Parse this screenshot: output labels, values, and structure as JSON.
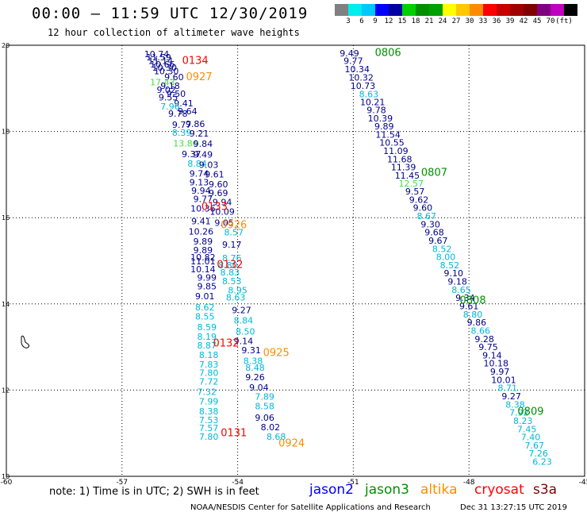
{
  "header": {
    "title": "00:00 — 11:59 UTC 12/30/2019",
    "subtitle": "12 hour collection of altimeter wave heights"
  },
  "colorbar": {
    "colors": [
      "#808080",
      "#00eeee",
      "#00c8ff",
      "#0000ff",
      "#0000a0",
      "#00d000",
      "#009000",
      "#00a000",
      "#ffff00",
      "#ffc800",
      "#ff8c00",
      "#ff0000",
      "#c80000",
      "#a00000",
      "#800000",
      "#800080",
      "#c000c0",
      "#000000"
    ],
    "labels": [
      "3",
      "6",
      "9",
      "12",
      "15",
      "18",
      "21",
      "24",
      "27",
      "30",
      "33",
      "36",
      "39",
      "42",
      "45",
      "70",
      "(ft)"
    ]
  },
  "footer": {
    "note": "note: 1) Time is in UTC; 2) SWH is in feet",
    "legend": [
      {
        "name": "jason2",
        "color": "#0000ff"
      },
      {
        "name": "jason3",
        "color": "#009000"
      },
      {
        "name": "altika",
        "color": "#ff8c00"
      },
      {
        "name": "cryosat",
        "color": "#ff0000"
      },
      {
        "name": "s3a",
        "color": "#800000"
      }
    ],
    "credit": "NOAA/NESDIS Center for Satellite Applications and Research",
    "timestamp": "Dec 31 13:27:15 UTC 2019"
  },
  "chart_data": {
    "type": "scatter",
    "xlim": [
      -60,
      -45
    ],
    "ylim": [
      10,
      20
    ],
    "x_ticks": [
      "-60",
      "-57",
      "-54",
      "-51",
      "-48",
      "-45"
    ],
    "y_ticks": [
      "10",
      "12",
      "14",
      "16",
      "18",
      "20"
    ],
    "grid": true,
    "value_colors": {
      "a": "#00008b",
      "b": "#00b8d8",
      "c": "#44dd44"
    },
    "series": [
      {
        "points": [
          [
            -56.1,
            19.8,
            "10.74",
            "a"
          ],
          [
            -56.05,
            19.72,
            "11.59",
            "a"
          ],
          [
            -56.0,
            19.64,
            "11.14",
            "a"
          ],
          [
            -55.95,
            19.56,
            "10.66",
            "a"
          ],
          [
            -55.9,
            19.48,
            "10.30",
            "a"
          ],
          [
            -55.85,
            19.4,
            "10.30",
            "a"
          ],
          [
            -55.65,
            19.26,
            "9.60",
            "a"
          ],
          [
            -55.95,
            19.14,
            "17.43",
            "c"
          ],
          [
            -55.75,
            19.06,
            "9.18",
            "a"
          ],
          [
            -55.85,
            18.97,
            "9.02",
            "a"
          ],
          [
            -55.6,
            18.88,
            "9.50",
            "a"
          ],
          [
            -55.8,
            18.79,
            "9.55",
            "a"
          ],
          [
            -55.4,
            18.66,
            "9.41",
            "a"
          ],
          [
            -55.75,
            18.58,
            "7.96",
            "b"
          ],
          [
            -55.3,
            18.47,
            "9.64",
            "a"
          ],
          [
            -55.55,
            18.42,
            "9.78",
            "a"
          ],
          [
            -55.1,
            18.18,
            "9.86",
            "a"
          ],
          [
            -55.45,
            18.16,
            "9.77",
            "a"
          ],
          [
            -55.45,
            17.97,
            "8.39",
            "b"
          ],
          [
            -55.0,
            17.96,
            "9.21",
            "a"
          ],
          [
            -55.35,
            17.73,
            "13.86",
            "c"
          ],
          [
            -54.9,
            17.72,
            "9.84",
            "a"
          ],
          [
            -55.2,
            17.48,
            "9.37",
            "a"
          ],
          [
            -54.9,
            17.47,
            "9.49",
            "a"
          ],
          [
            -55.05,
            17.26,
            "8.84",
            "b"
          ],
          [
            -54.75,
            17.23,
            "9.03",
            "a"
          ],
          [
            -55.0,
            17.03,
            "9.74",
            "a"
          ],
          [
            -54.6,
            17.01,
            "9.61",
            "a"
          ],
          [
            -55.0,
            16.82,
            "9.13",
            "a"
          ],
          [
            -54.5,
            16.78,
            "9.60",
            "a"
          ],
          [
            -54.95,
            16.63,
            "9.94",
            "a"
          ],
          [
            -54.5,
            16.57,
            "9.69",
            "a"
          ],
          [
            -54.9,
            16.44,
            "9.77",
            "a"
          ],
          [
            -54.4,
            16.36,
            "9.94",
            "a"
          ],
          [
            -54.9,
            16.22,
            "10.36",
            "a"
          ],
          [
            -54.4,
            16.14,
            "10.09",
            "a"
          ],
          [
            -54.95,
            15.92,
            "9.41",
            "a"
          ],
          [
            -54.35,
            15.88,
            "9.05",
            "a"
          ],
          [
            -54.95,
            15.68,
            "10.26",
            "a"
          ],
          [
            -54.1,
            15.66,
            "8.57",
            "b"
          ],
          [
            -54.9,
            15.45,
            "9.89",
            "a"
          ],
          [
            -54.15,
            15.38,
            "9.17",
            "a"
          ],
          [
            -54.9,
            15.25,
            "9.89",
            "a"
          ],
          [
            -54.15,
            15.06,
            "8.76",
            "b"
          ],
          [
            -54.9,
            15.08,
            "10.82",
            "a"
          ],
          [
            -54.9,
            14.99,
            "11.01",
            "a"
          ],
          [
            -54.25,
            14.9,
            "8.80",
            "b"
          ],
          [
            -54.9,
            14.81,
            "10.14",
            "a"
          ],
          [
            -54.2,
            14.73,
            "8.83",
            "b"
          ],
          [
            -54.8,
            14.61,
            "9.99",
            "a"
          ],
          [
            -54.15,
            14.53,
            "8.53",
            "b"
          ],
          [
            -54.8,
            14.41,
            "9.85",
            "a"
          ],
          [
            -54.0,
            14.32,
            "8.95",
            "b"
          ],
          [
            -54.85,
            14.18,
            "9.01",
            "a"
          ],
          [
            -54.05,
            14.15,
            "8.63",
            "b"
          ],
          [
            -54.85,
            13.92,
            "8.62",
            "b"
          ],
          [
            -53.9,
            13.86,
            "9.27",
            "a"
          ],
          [
            -54.85,
            13.71,
            "8.55",
            "b"
          ],
          [
            -53.85,
            13.62,
            "8.84",
            "b"
          ],
          [
            -54.8,
            13.46,
            "8.59",
            "b"
          ],
          [
            -53.8,
            13.36,
            "8.50",
            "b"
          ],
          [
            -54.8,
            13.24,
            "8.19",
            "b"
          ],
          [
            -53.85,
            13.14,
            "9.14",
            "a"
          ],
          [
            -54.8,
            13.04,
            "8.87",
            "b"
          ],
          [
            -53.65,
            12.93,
            "9.31",
            "a"
          ],
          [
            -54.75,
            12.82,
            "8.18",
            "b"
          ],
          [
            -53.6,
            12.68,
            "8.38",
            "b"
          ],
          [
            -54.75,
            12.6,
            "7.83",
            "b"
          ],
          [
            -53.55,
            12.52,
            "8.48",
            "b"
          ],
          [
            -54.75,
            12.4,
            "7.80",
            "b"
          ],
          [
            -53.55,
            12.3,
            "9.26",
            "a"
          ],
          [
            -54.75,
            12.2,
            "7.72",
            "b"
          ],
          [
            -53.45,
            12.06,
            "9.04",
            "a"
          ],
          [
            -54.8,
            11.96,
            "7.32",
            "b"
          ],
          [
            -53.3,
            11.85,
            "7.89",
            "b"
          ],
          [
            -54.75,
            11.74,
            "7.99",
            "b"
          ],
          [
            -53.3,
            11.63,
            "8.58",
            "b"
          ],
          [
            -54.75,
            11.51,
            "8.38",
            "b"
          ],
          [
            -53.3,
            11.36,
            "9.06",
            "a"
          ],
          [
            -54.75,
            11.31,
            "7.53",
            "b"
          ],
          [
            -53.15,
            11.14,
            "8.02",
            "a"
          ],
          [
            -54.75,
            11.12,
            "7.57",
            "b"
          ],
          [
            -53.0,
            10.92,
            "8.68",
            "b"
          ],
          [
            -54.75,
            10.92,
            "7.80",
            "b"
          ]
        ]
      },
      {
        "points": [
          [
            -51.1,
            19.82,
            "9.49",
            "a"
          ],
          [
            -51.0,
            19.64,
            "9.77",
            "a"
          ],
          [
            -50.9,
            19.45,
            "10.34",
            "a"
          ],
          [
            -50.8,
            19.25,
            "10.32",
            "a"
          ],
          [
            -50.75,
            19.06,
            "10.73",
            "a"
          ],
          [
            -50.6,
            18.87,
            "8.63",
            "b"
          ],
          [
            -50.5,
            18.68,
            "10.21",
            "a"
          ],
          [
            -50.4,
            18.5,
            "9.78",
            "a"
          ],
          [
            -50.3,
            18.31,
            "10.39",
            "a"
          ],
          [
            -50.2,
            18.12,
            "9.89",
            "a"
          ],
          [
            -50.1,
            17.93,
            "11.54",
            "a"
          ],
          [
            -50.0,
            17.74,
            "10.55",
            "a"
          ],
          [
            -49.9,
            17.55,
            "11.09",
            "a"
          ],
          [
            -49.8,
            17.36,
            "11.68",
            "a"
          ],
          [
            -49.7,
            17.17,
            "11.39",
            "a"
          ],
          [
            -49.6,
            16.98,
            "11.45",
            "a"
          ],
          [
            -49.5,
            16.8,
            "12.57",
            "c"
          ],
          [
            -49.4,
            16.61,
            "9.57",
            "a"
          ],
          [
            -49.3,
            16.42,
            "9.62",
            "a"
          ],
          [
            -49.2,
            16.23,
            "9.60",
            "a"
          ],
          [
            -49.1,
            16.04,
            "8.67",
            "b"
          ],
          [
            -49.0,
            15.85,
            "9.30",
            "a"
          ],
          [
            -48.9,
            15.66,
            "9.68",
            "a"
          ],
          [
            -48.8,
            15.47,
            "9.67",
            "a"
          ],
          [
            -48.7,
            15.28,
            "8.52",
            "b"
          ],
          [
            -48.6,
            15.09,
            "8.00",
            "b"
          ],
          [
            -48.5,
            14.9,
            "8.52",
            "b"
          ],
          [
            -48.4,
            14.71,
            "9.10",
            "a"
          ],
          [
            -48.3,
            14.52,
            "9.18",
            "a"
          ],
          [
            -48.2,
            14.33,
            "8.65",
            "b"
          ],
          [
            -48.1,
            14.14,
            "9.34",
            "a"
          ],
          [
            -48.0,
            13.95,
            "9.61",
            "a"
          ],
          [
            -47.9,
            13.76,
            "8.80",
            "b"
          ],
          [
            -47.8,
            13.57,
            "9.86",
            "a"
          ],
          [
            -47.7,
            13.38,
            "8.66",
            "b"
          ],
          [
            -47.6,
            13.19,
            "9.28",
            "a"
          ],
          [
            -47.5,
            13.0,
            "9.75",
            "a"
          ],
          [
            -47.4,
            12.81,
            "9.14",
            "a"
          ],
          [
            -47.3,
            12.62,
            "10.18",
            "a"
          ],
          [
            -47.2,
            12.43,
            "9.97",
            "a"
          ],
          [
            -47.1,
            12.24,
            "10.01",
            "a"
          ],
          [
            -47.0,
            12.05,
            "8.71",
            "b"
          ],
          [
            -46.9,
            11.86,
            "9.27",
            "a"
          ],
          [
            -46.8,
            11.67,
            "8.38",
            "b"
          ],
          [
            -46.7,
            11.48,
            "7.92",
            "b"
          ],
          [
            -46.6,
            11.29,
            "8.23",
            "b"
          ],
          [
            -46.5,
            11.1,
            "7.45",
            "b"
          ],
          [
            -46.4,
            10.91,
            "7.40",
            "b"
          ],
          [
            -46.3,
            10.72,
            "7.67",
            "b"
          ],
          [
            -46.2,
            10.53,
            "7.26",
            "b"
          ],
          [
            -46.1,
            10.34,
            "6.23",
            "b"
          ]
        ]
      }
    ],
    "time_labels": [
      {
        "x": -55.1,
        "y": 19.66,
        "text": "0134",
        "color": "#ff0000"
      },
      {
        "x": -55.0,
        "y": 19.28,
        "text": "0927",
        "color": "#ff8c00"
      },
      {
        "x": -54.6,
        "y": 16.27,
        "text": "0133",
        "color": "#ff0000"
      },
      {
        "x": -54.1,
        "y": 15.85,
        "text": "0926",
        "color": "#ff8c00"
      },
      {
        "x": -54.2,
        "y": 14.93,
        "text": "0132",
        "color": "#ff0000"
      },
      {
        "x": -54.3,
        "y": 13.1,
        "text": "0132",
        "color": "#ff0000"
      },
      {
        "x": -53.0,
        "y": 12.88,
        "text": "0925",
        "color": "#ff8c00"
      },
      {
        "x": -54.1,
        "y": 11.02,
        "text": "0131",
        "color": "#ff0000"
      },
      {
        "x": -52.6,
        "y": 10.78,
        "text": "0924",
        "color": "#ff8c00"
      },
      {
        "x": -50.1,
        "y": 19.84,
        "text": "0806",
        "color": "#009000"
      },
      {
        "x": -48.9,
        "y": 17.06,
        "text": "0807",
        "color": "#009000"
      },
      {
        "x": -47.9,
        "y": 14.1,
        "text": "0808",
        "color": "#009000"
      },
      {
        "x": -46.4,
        "y": 11.52,
        "text": "0809",
        "color": "#009000"
      }
    ]
  }
}
